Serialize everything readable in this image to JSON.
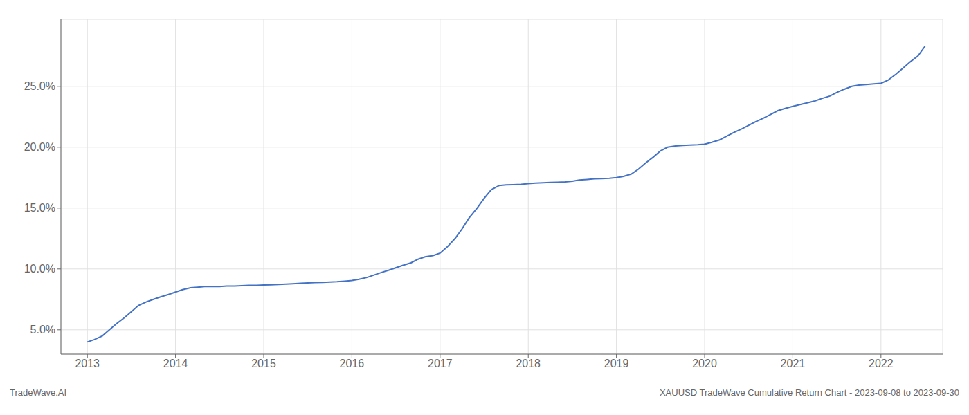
{
  "chart_data": {
    "type": "line",
    "annotations": [
      "TradeWave.AI",
      "XAUUSD TradeWave Cumulative Return Chart - 2023-09-08 to 2023-09-30"
    ],
    "x": [
      2013.0,
      2013.08,
      2013.17,
      2013.25,
      2013.33,
      2013.42,
      2013.5,
      2013.58,
      2013.67,
      2013.75,
      2013.83,
      2013.92,
      2014.0,
      2014.08,
      2014.17,
      2014.25,
      2014.33,
      2014.42,
      2014.5,
      2014.58,
      2014.67,
      2014.75,
      2014.83,
      2014.92,
      2015.0,
      2015.08,
      2015.17,
      2015.25,
      2015.33,
      2015.42,
      2015.5,
      2015.58,
      2015.67,
      2015.75,
      2015.83,
      2015.92,
      2016.0,
      2016.08,
      2016.17,
      2016.25,
      2016.33,
      2016.42,
      2016.5,
      2016.58,
      2016.67,
      2016.75,
      2016.83,
      2016.92,
      2017.0,
      2017.08,
      2017.17,
      2017.25,
      2017.33,
      2017.42,
      2017.5,
      2017.58,
      2017.67,
      2017.75,
      2017.83,
      2017.92,
      2018.0,
      2018.08,
      2018.17,
      2018.25,
      2018.33,
      2018.42,
      2018.5,
      2018.58,
      2018.67,
      2018.75,
      2018.83,
      2018.92,
      2019.0,
      2019.08,
      2019.17,
      2019.25,
      2019.33,
      2019.42,
      2019.5,
      2019.58,
      2019.67,
      2019.75,
      2019.83,
      2019.92,
      2020.0,
      2020.08,
      2020.17,
      2020.25,
      2020.33,
      2020.42,
      2020.5,
      2020.58,
      2020.67,
      2020.75,
      2020.83,
      2020.92,
      2021.0,
      2021.08,
      2021.17,
      2021.25,
      2021.33,
      2021.42,
      2021.5,
      2021.58,
      2021.67,
      2021.75,
      2021.83,
      2021.92,
      2022.0,
      2022.08,
      2022.17,
      2022.25,
      2022.33,
      2022.42,
      2022.5
    ],
    "values": [
      4.0,
      4.2,
      4.5,
      5.0,
      5.5,
      6.0,
      6.5,
      7.0,
      7.3,
      7.5,
      7.7,
      7.9,
      8.1,
      8.3,
      8.45,
      8.5,
      8.55,
      8.55,
      8.55,
      8.6,
      8.6,
      8.62,
      8.65,
      8.65,
      8.68,
      8.7,
      8.72,
      8.75,
      8.78,
      8.82,
      8.85,
      8.88,
      8.9,
      8.92,
      8.95,
      9.0,
      9.05,
      9.15,
      9.3,
      9.5,
      9.7,
      9.9,
      10.1,
      10.3,
      10.5,
      10.8,
      11.0,
      11.1,
      11.3,
      11.8,
      12.5,
      13.3,
      14.2,
      15.0,
      15.8,
      16.5,
      16.85,
      16.9,
      16.92,
      16.95,
      17.0,
      17.05,
      17.08,
      17.1,
      17.12,
      17.15,
      17.2,
      17.3,
      17.35,
      17.4,
      17.42,
      17.45,
      17.5,
      17.6,
      17.8,
      18.2,
      18.7,
      19.2,
      19.7,
      20.0,
      20.1,
      20.15,
      20.18,
      20.2,
      20.25,
      20.4,
      20.6,
      20.9,
      21.2,
      21.5,
      21.8,
      22.1,
      22.4,
      22.7,
      23.0,
      23.2,
      23.35,
      23.5,
      23.65,
      23.8,
      24.0,
      24.2,
      24.5,
      24.75,
      25.0,
      25.1,
      25.15,
      25.2,
      25.25,
      25.5,
      26.0,
      26.5,
      27.0,
      27.5,
      28.3
    ],
    "color": "#4472c4",
    "xlim": [
      2012.7,
      2022.7
    ],
    "ylim": [
      3.0,
      30.5
    ],
    "xticks": [
      2013,
      2014,
      2015,
      2016,
      2017,
      2018,
      2019,
      2020,
      2021,
      2022
    ],
    "yticks": [
      {
        "value": 5.0,
        "label": "5.0%"
      },
      {
        "value": 10.0,
        "label": "10.0%"
      },
      {
        "value": 15.0,
        "label": "15.0%"
      },
      {
        "value": 20.0,
        "label": "20.0%"
      },
      {
        "value": 25.0,
        "label": "25.0%"
      }
    ],
    "grid": true
  }
}
